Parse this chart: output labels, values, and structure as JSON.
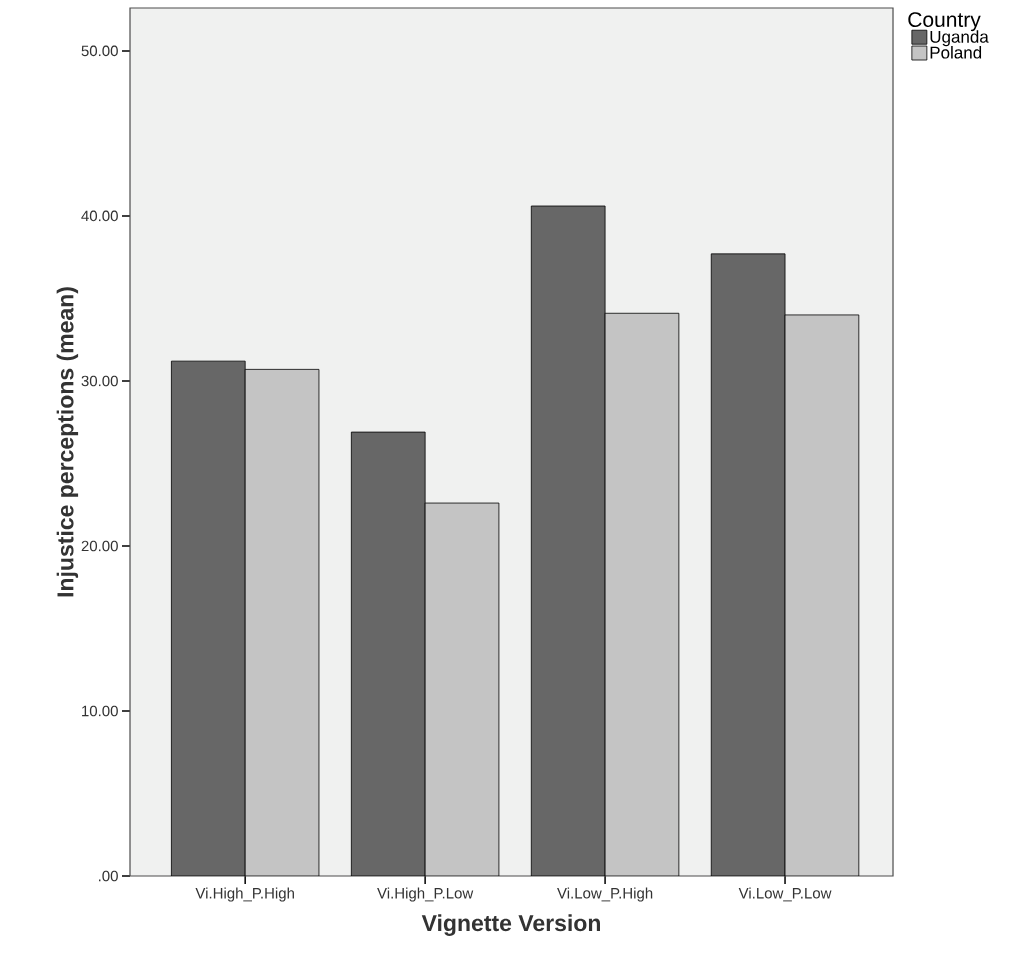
{
  "chart_data": {
    "type": "bar",
    "xlabel": "Vignette Version",
    "ylabel": "Injustice perceptions (mean)",
    "legend_title": "Country",
    "legend": "right",
    "categories": [
      "Vi.High_P.High",
      "Vi.High_P.Low",
      "Vi.Low_P.High",
      "Vi.Low_P.Low"
    ],
    "series": [
      {
        "name": "Uganda",
        "color": "#676767",
        "values": [
          31.2,
          26.9,
          40.6,
          37.7
        ]
      },
      {
        "name": "Poland",
        "color": "#c4c4c4",
        "values": [
          30.7,
          22.6,
          34.1,
          34.0
        ]
      }
    ],
    "ylim": [
      0,
      52.6
    ],
    "yticks": [
      {
        "value": 0,
        "label": ".00"
      },
      {
        "value": 10,
        "label": "10.00"
      },
      {
        "value": 20,
        "label": "20.00"
      },
      {
        "value": 30,
        "label": "30.00"
      },
      {
        "value": 40,
        "label": "40.00"
      },
      {
        "value": 50,
        "label": "50.00"
      }
    ]
  }
}
